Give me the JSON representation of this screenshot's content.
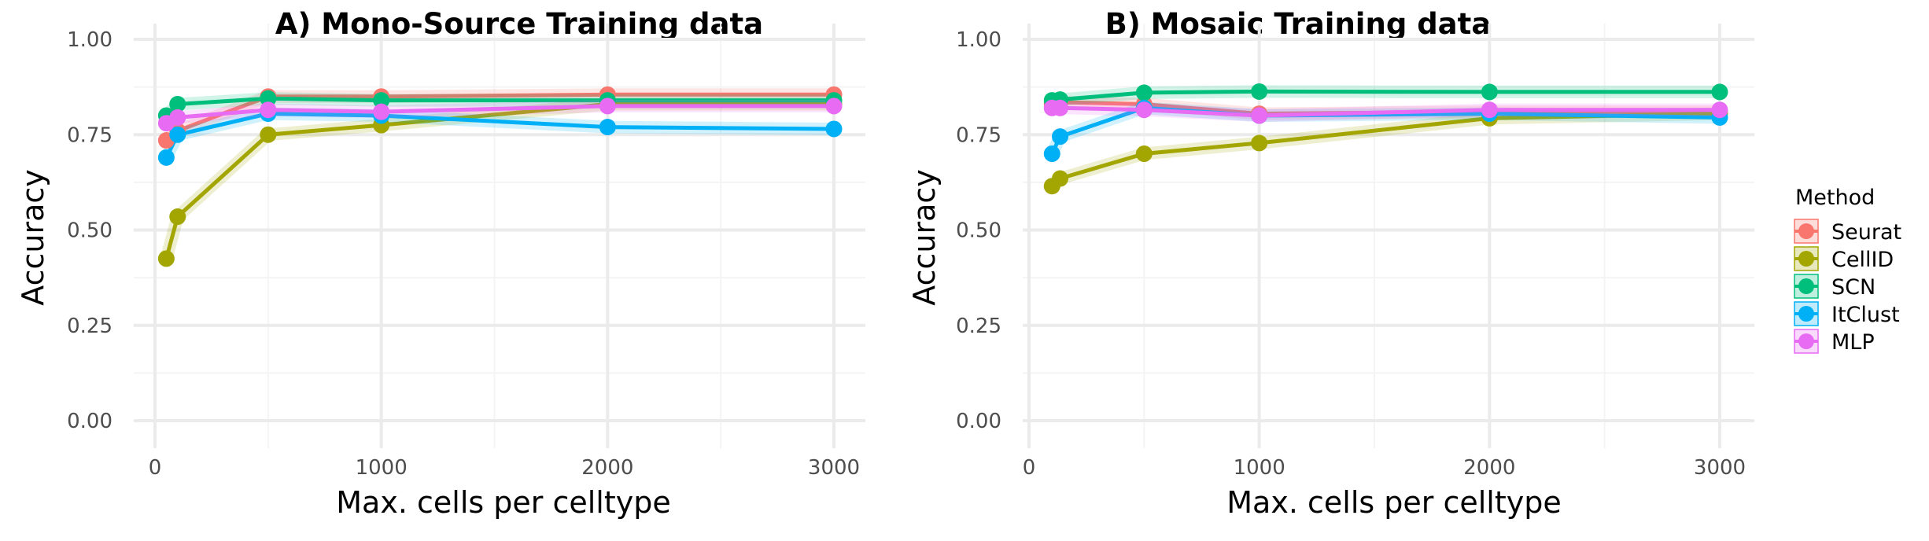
{
  "legend": {
    "title": "Method",
    "items": [
      "Seurat",
      "CellID",
      "SCN",
      "ItClust",
      "MLP"
    ]
  },
  "colors": {
    "Seurat": "#F8766D",
    "CellID": "#A3A500",
    "SCN": "#00BF7D",
    "ItClust": "#00B0F6",
    "MLP": "#E76BF3",
    "grid_major": "#EBEBEB",
    "grid_minor": "#F4F4F4"
  },
  "chart_data": [
    {
      "type": "line",
      "title": "A) Mono-Source Training data",
      "xlabel": "Max. cells per celltype",
      "ylabel": "Accuracy",
      "xlim": [
        0,
        3000
      ],
      "ylim": [
        0,
        1
      ],
      "xticks": [
        0,
        1000,
        2000,
        3000
      ],
      "xtick_labels": [
        "0",
        "1000",
        "2000",
        "3000"
      ],
      "yticks": [
        0,
        0.25,
        0.5,
        0.75,
        1
      ],
      "ytick_labels": [
        "0.00",
        "0.25",
        "0.50",
        "0.75",
        "1.00"
      ],
      "grid": true,
      "x": [
        50,
        100,
        500,
        1000,
        2000,
        3000
      ],
      "series": [
        {
          "name": "Seurat",
          "values": [
            0.735,
            0.76,
            0.85,
            0.85,
            0.855,
            0.855
          ]
        },
        {
          "name": "CellID",
          "values": [
            0.425,
            0.535,
            0.75,
            0.775,
            0.83,
            0.83
          ]
        },
        {
          "name": "SCN",
          "values": [
            0.8,
            0.83,
            0.845,
            0.84,
            0.84,
            0.84
          ]
        },
        {
          "name": "ItClust",
          "values": [
            0.69,
            0.75,
            0.805,
            0.8,
            0.77,
            0.765
          ]
        },
        {
          "name": "MLP",
          "values": [
            0.78,
            0.795,
            0.815,
            0.81,
            0.825,
            0.825
          ]
        }
      ]
    },
    {
      "type": "line",
      "title": "B) Mosaic Training data",
      "xlabel": "Max. cells per celltype",
      "ylabel": "Accuracy",
      "xlim": [
        0,
        3000
      ],
      "ylim": [
        0,
        1
      ],
      "xticks": [
        0,
        1000,
        2000,
        3000
      ],
      "xtick_labels": [
        "0",
        "1000",
        "2000",
        "3000"
      ],
      "yticks": [
        0,
        0.25,
        0.5,
        0.75,
        1
      ],
      "ytick_labels": [
        "0.00",
        "0.25",
        "0.50",
        "0.75",
        "1.00"
      ],
      "grid": true,
      "x": [
        100,
        135,
        500,
        1000,
        2000,
        3000
      ],
      "series": [
        {
          "name": "Seurat",
          "values": [
            0.83,
            0.835,
            0.83,
            0.805,
            0.81,
            0.81
          ]
        },
        {
          "name": "CellID",
          "values": [
            0.615,
            0.635,
            0.7,
            0.728,
            0.793,
            0.805
          ]
        },
        {
          "name": "SCN",
          "values": [
            0.84,
            0.842,
            0.86,
            0.863,
            0.862,
            0.862
          ]
        },
        {
          "name": "ItClust",
          "values": [
            0.7,
            0.745,
            0.82,
            0.8,
            0.805,
            0.795
          ]
        },
        {
          "name": "MLP",
          "values": [
            0.82,
            0.82,
            0.815,
            0.8,
            0.815,
            0.815
          ]
        }
      ]
    }
  ]
}
